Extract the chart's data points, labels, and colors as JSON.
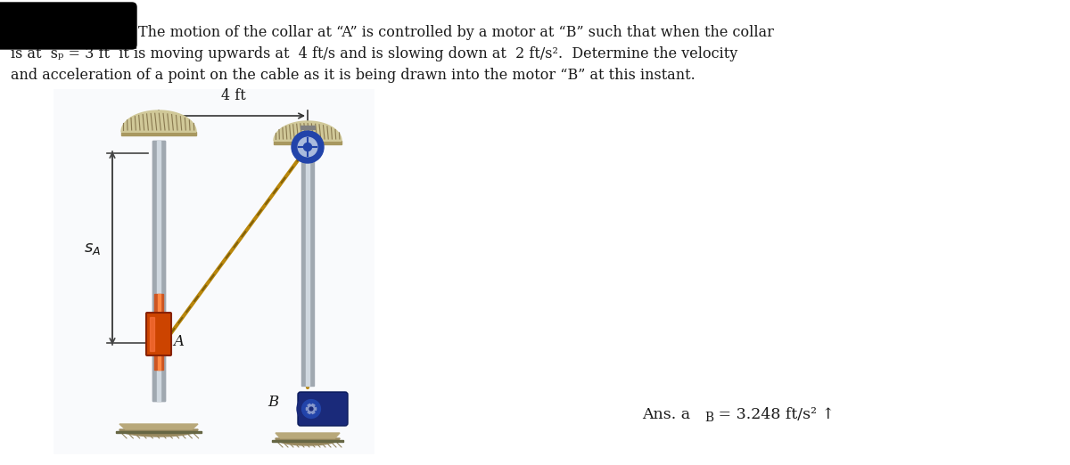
{
  "title_line1": "The motion of the collar at “A” is controlled by a motor at “B” such that when the collar",
  "title_line2": "is at  sₚ = 3 ft  it is moving upwards at  4 ft/s and is slowing down at  2 ft/s².  Determine the velocity",
  "title_line3": "and acceleration of a point on the cable as it is being drawn into the motor “B” at this instant.",
  "ans_label": "Ans. a",
  "ans_sub": "B",
  "ans_rest": " = 3.248 ft/s² ↑",
  "dim_label": "4 ft",
  "label_SA": "s",
  "label_SA_sub": "A",
  "label_A": "A",
  "label_B": "B",
  "bg_color": "#ffffff",
  "text_color": "#1a1a1a",
  "pole_gray": "#a0a8b0",
  "pole_dark": "#6a7280",
  "pole_light": "#d0d8e0",
  "cable_color": "#b8860b",
  "cable_dark": "#7a5c0a",
  "collar_orange": "#cc4400",
  "collar_dark": "#882200",
  "motor_outer": "#1a2a7a",
  "motor_mid": "#2244aa",
  "motor_inner": "#8899cc",
  "motor_center": "#1a2a7a",
  "pulley_blue": "#2244aa",
  "pulley_light": "#aabbdd",
  "base_tan": "#b8a87a",
  "base_dark": "#9a8a60",
  "redact_color": "#000000",
  "dim_line_color": "#333333",
  "sa_line_color": "#444444"
}
